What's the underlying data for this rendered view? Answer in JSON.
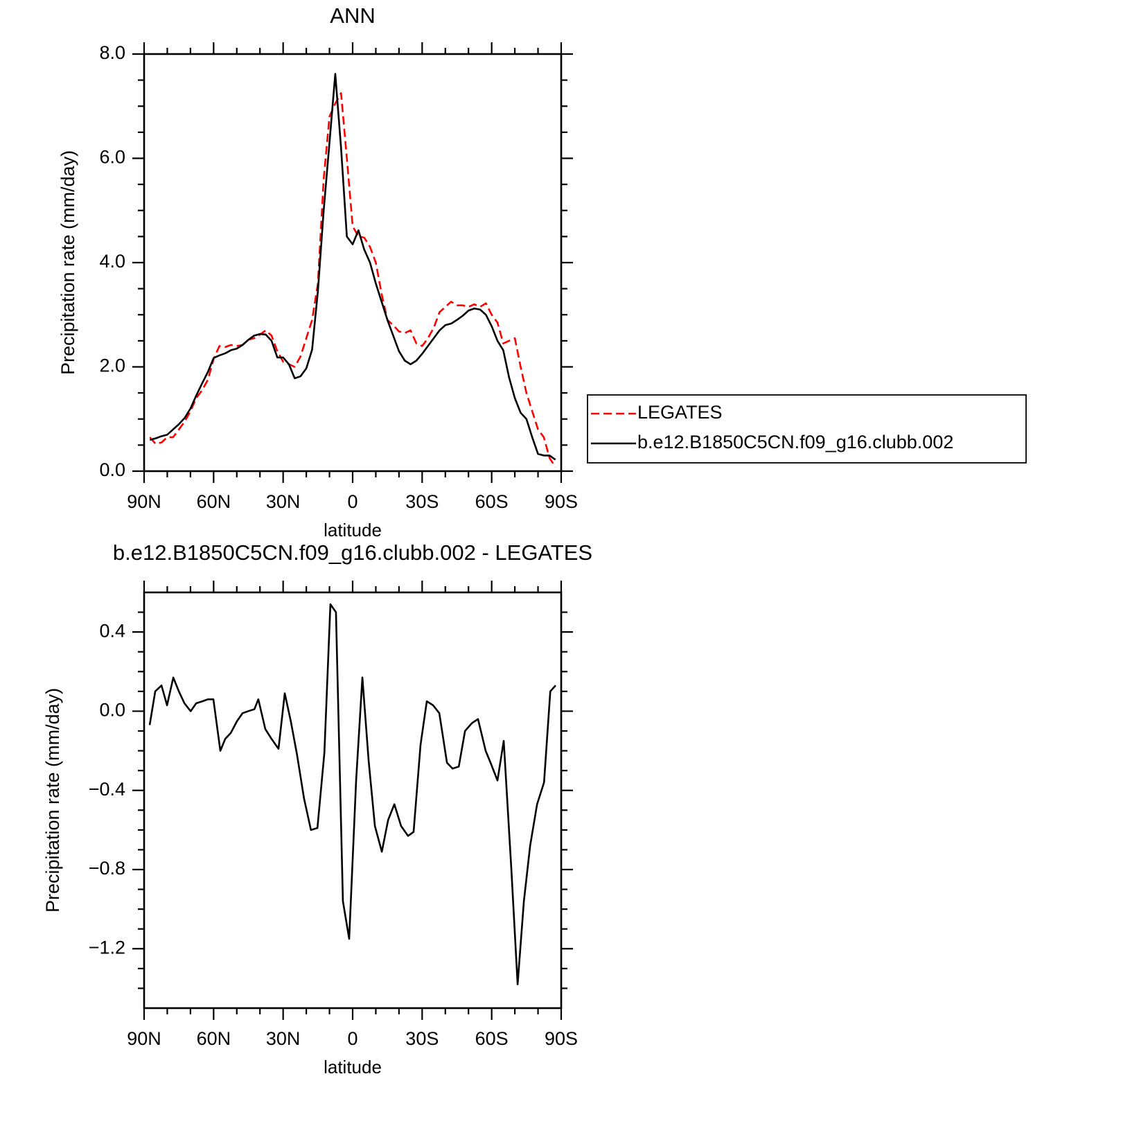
{
  "chart_data": [
    {
      "type": "line",
      "title": "ANN",
      "xlabel": "latitude",
      "ylabel": "Precipitation rate (mm/day)",
      "x": [
        87.5,
        85,
        82.5,
        80,
        77.5,
        75,
        72.5,
        70,
        67.5,
        65,
        62.5,
        60,
        57.5,
        55,
        52.5,
        50,
        47.5,
        45,
        42.5,
        40,
        37.5,
        35,
        32.5,
        30,
        27.5,
        25,
        22.5,
        20,
        17.5,
        15,
        12.5,
        10,
        7.5,
        5,
        2.5,
        0,
        -2.5,
        -5,
        -7.5,
        -10,
        -12.5,
        -15,
        -17.5,
        -20,
        -22.5,
        -25,
        -27.5,
        -30,
        -32.5,
        -35,
        -37.5,
        -40,
        -42.5,
        -45,
        -47.5,
        -50,
        -52.5,
        -55,
        -57.5,
        -60,
        -62.5,
        -65,
        -67.5,
        -70,
        -72.5,
        -75,
        -77.5,
        -80,
        -82.5,
        -85,
        -87.5
      ],
      "series": [
        {
          "name": "LEGATES",
          "color": "#ff0000",
          "dash": true,
          "values": [
            0.65,
            0.52,
            0.55,
            0.65,
            0.65,
            0.8,
            0.95,
            1.15,
            1.4,
            1.55,
            1.75,
            2.15,
            2.4,
            2.38,
            2.42,
            2.4,
            2.42,
            2.52,
            2.55,
            2.62,
            2.7,
            2.6,
            2.3,
            2.1,
            2.05,
            2.0,
            2.2,
            2.55,
            2.9,
            3.6,
            5.6,
            6.8,
            7.05,
            7.25,
            6.0,
            4.7,
            4.5,
            4.48,
            4.3,
            4.0,
            3.4,
            2.9,
            2.8,
            2.68,
            2.65,
            2.7,
            2.45,
            2.4,
            2.55,
            2.75,
            3.05,
            3.15,
            3.25,
            3.18,
            3.18,
            3.15,
            3.2,
            3.15,
            3.22,
            3.0,
            2.85,
            2.45,
            2.5,
            2.55,
            2.0,
            1.5,
            1.15,
            0.8,
            0.65,
            0.25,
            0.08
          ]
        },
        {
          "name": "b.e12.B1850C5CN.f09_g16.clubb.002",
          "color": "#000000",
          "dash": false,
          "values": [
            0.6,
            0.63,
            0.67,
            0.7,
            0.8,
            0.9,
            1.02,
            1.2,
            1.45,
            1.68,
            1.9,
            2.17,
            2.22,
            2.26,
            2.32,
            2.35,
            2.42,
            2.52,
            2.6,
            2.63,
            2.62,
            2.5,
            2.18,
            2.18,
            2.05,
            1.78,
            1.82,
            1.97,
            2.33,
            3.45,
            5.0,
            6.3,
            7.62,
            6.2,
            4.5,
            4.35,
            4.62,
            4.25,
            4.0,
            3.6,
            3.25,
            2.9,
            2.6,
            2.3,
            2.12,
            2.05,
            2.12,
            2.25,
            2.4,
            2.55,
            2.7,
            2.8,
            2.83,
            2.9,
            2.98,
            3.08,
            3.12,
            3.1,
            3.0,
            2.78,
            2.5,
            2.32,
            1.8,
            1.4,
            1.12,
            1.0,
            0.65,
            0.33,
            0.3,
            0.3,
            0.22
          ]
        }
      ],
      "xlim": [
        90,
        -90
      ],
      "xticks": [
        {
          "value": 90,
          "label": "90N"
        },
        {
          "value": 60,
          "label": "60N"
        },
        {
          "value": 30,
          "label": "30N"
        },
        0,
        {
          "value": -30,
          "label": "30S"
        },
        {
          "value": -60,
          "label": "60S"
        },
        {
          "value": -90,
          "label": "90S"
        }
      ],
      "xminorticks": [
        80,
        70,
        50,
        40,
        20,
        10,
        -10,
        -20,
        -40,
        -50,
        -70,
        -80
      ],
      "ylim": [
        0,
        8
      ],
      "yticks": [
        {
          "value": 0,
          "label": "0.0"
        },
        {
          "value": 2,
          "label": "2.0"
        },
        {
          "value": 4,
          "label": "4.0"
        },
        {
          "value": 6,
          "label": "6.0"
        },
        {
          "value": 8,
          "label": "8.0"
        }
      ],
      "yminorticks": [
        0.5,
        1,
        1.5,
        2.5,
        3,
        3.5,
        4.5,
        5,
        5.5,
        6.5,
        7,
        7.5
      ],
      "legend": "right"
    },
    {
      "type": "line",
      "title": "b.e12.B1850C5CN.f09_g16.clubb.002 - LEGATES",
      "xlabel": "latitude",
      "ylabel": "Precipitation rate (mm/day)",
      "x": [
        87.6,
        85.2,
        82.5,
        80.1,
        77.4,
        75.0,
        72.6,
        69.9,
        67.5,
        64.8,
        62.5,
        60.1,
        57.1,
        55.0,
        52.6,
        49.9,
        47.5,
        45.1,
        42.4,
        40.7,
        37.7,
        35.0,
        32.0,
        29.3,
        26.7,
        24.0,
        21.0,
        18.0,
        15.2,
        12.2,
        9.6,
        7.2,
        4.2,
        1.5,
        -1.5,
        -4.2,
        -6.9,
        -9.6,
        -12.6,
        -15.3,
        -18.0,
        -20.9,
        -23.9,
        -26.3,
        -29.3,
        -32.0,
        -34.7,
        -37.4,
        -40.7,
        -43.1,
        -45.8,
        -48.5,
        -51.5,
        -54.1,
        -57.4,
        -59.5,
        -62.5,
        -65.2,
        -68.5,
        -71.2,
        -73.9,
        -76.6,
        -79.6,
        -82.6,
        -85.3,
        -87.6
      ],
      "series": [
        {
          "color": "#000000",
          "dash": false,
          "values": [
            -0.07,
            0.1,
            0.13,
            0.03,
            0.17,
            0.1,
            0.04,
            0.0,
            0.04,
            0.05,
            0.06,
            0.06,
            -0.2,
            -0.14,
            -0.11,
            -0.05,
            -0.01,
            0.0,
            0.01,
            0.06,
            -0.09,
            -0.14,
            -0.19,
            0.09,
            -0.05,
            -0.22,
            -0.44,
            -0.6,
            -0.59,
            -0.21,
            0.54,
            0.5,
            -0.96,
            -1.15,
            -0.35,
            0.17,
            -0.25,
            -0.58,
            -0.71,
            -0.55,
            -0.47,
            -0.58,
            -0.63,
            -0.61,
            -0.17,
            0.05,
            0.03,
            -0.01,
            -0.26,
            -0.29,
            -0.28,
            -0.1,
            -0.06,
            -0.04,
            -0.2,
            -0.26,
            -0.35,
            -0.15,
            -0.8,
            -1.38,
            -0.96,
            -0.68,
            -0.47,
            -0.36,
            0.1,
            0.13
          ]
        }
      ],
      "xlim": [
        90,
        -90
      ],
      "xticks": [
        {
          "value": 90,
          "label": "90N"
        },
        {
          "value": 60,
          "label": "60N"
        },
        {
          "value": 30,
          "label": "30N"
        },
        0,
        {
          "value": -30,
          "label": "30S"
        },
        {
          "value": -60,
          "label": "60S"
        },
        {
          "value": -90,
          "label": "90S"
        }
      ],
      "xminorticks": [
        80,
        70,
        50,
        40,
        20,
        10,
        -10,
        -20,
        -40,
        -50,
        -70,
        -80
      ],
      "ylim": [
        -1.5,
        0.6
      ],
      "yticks": [
        0.4,
        {
          "value": 0,
          "label": "0.0"
        },
        {
          "value": -0.4,
          "label": "−0.4"
        },
        {
          "value": -0.8,
          "label": "−0.8"
        },
        {
          "value": -1.2,
          "label": "−1.2"
        }
      ],
      "yminorticks": [
        0.5,
        0.3,
        0.2,
        0.1,
        -0.1,
        -0.2,
        -0.3,
        -0.5,
        -0.6,
        -0.7,
        -0.9,
        -1.0,
        -1.1,
        -1.3,
        -1.4
      ]
    }
  ]
}
